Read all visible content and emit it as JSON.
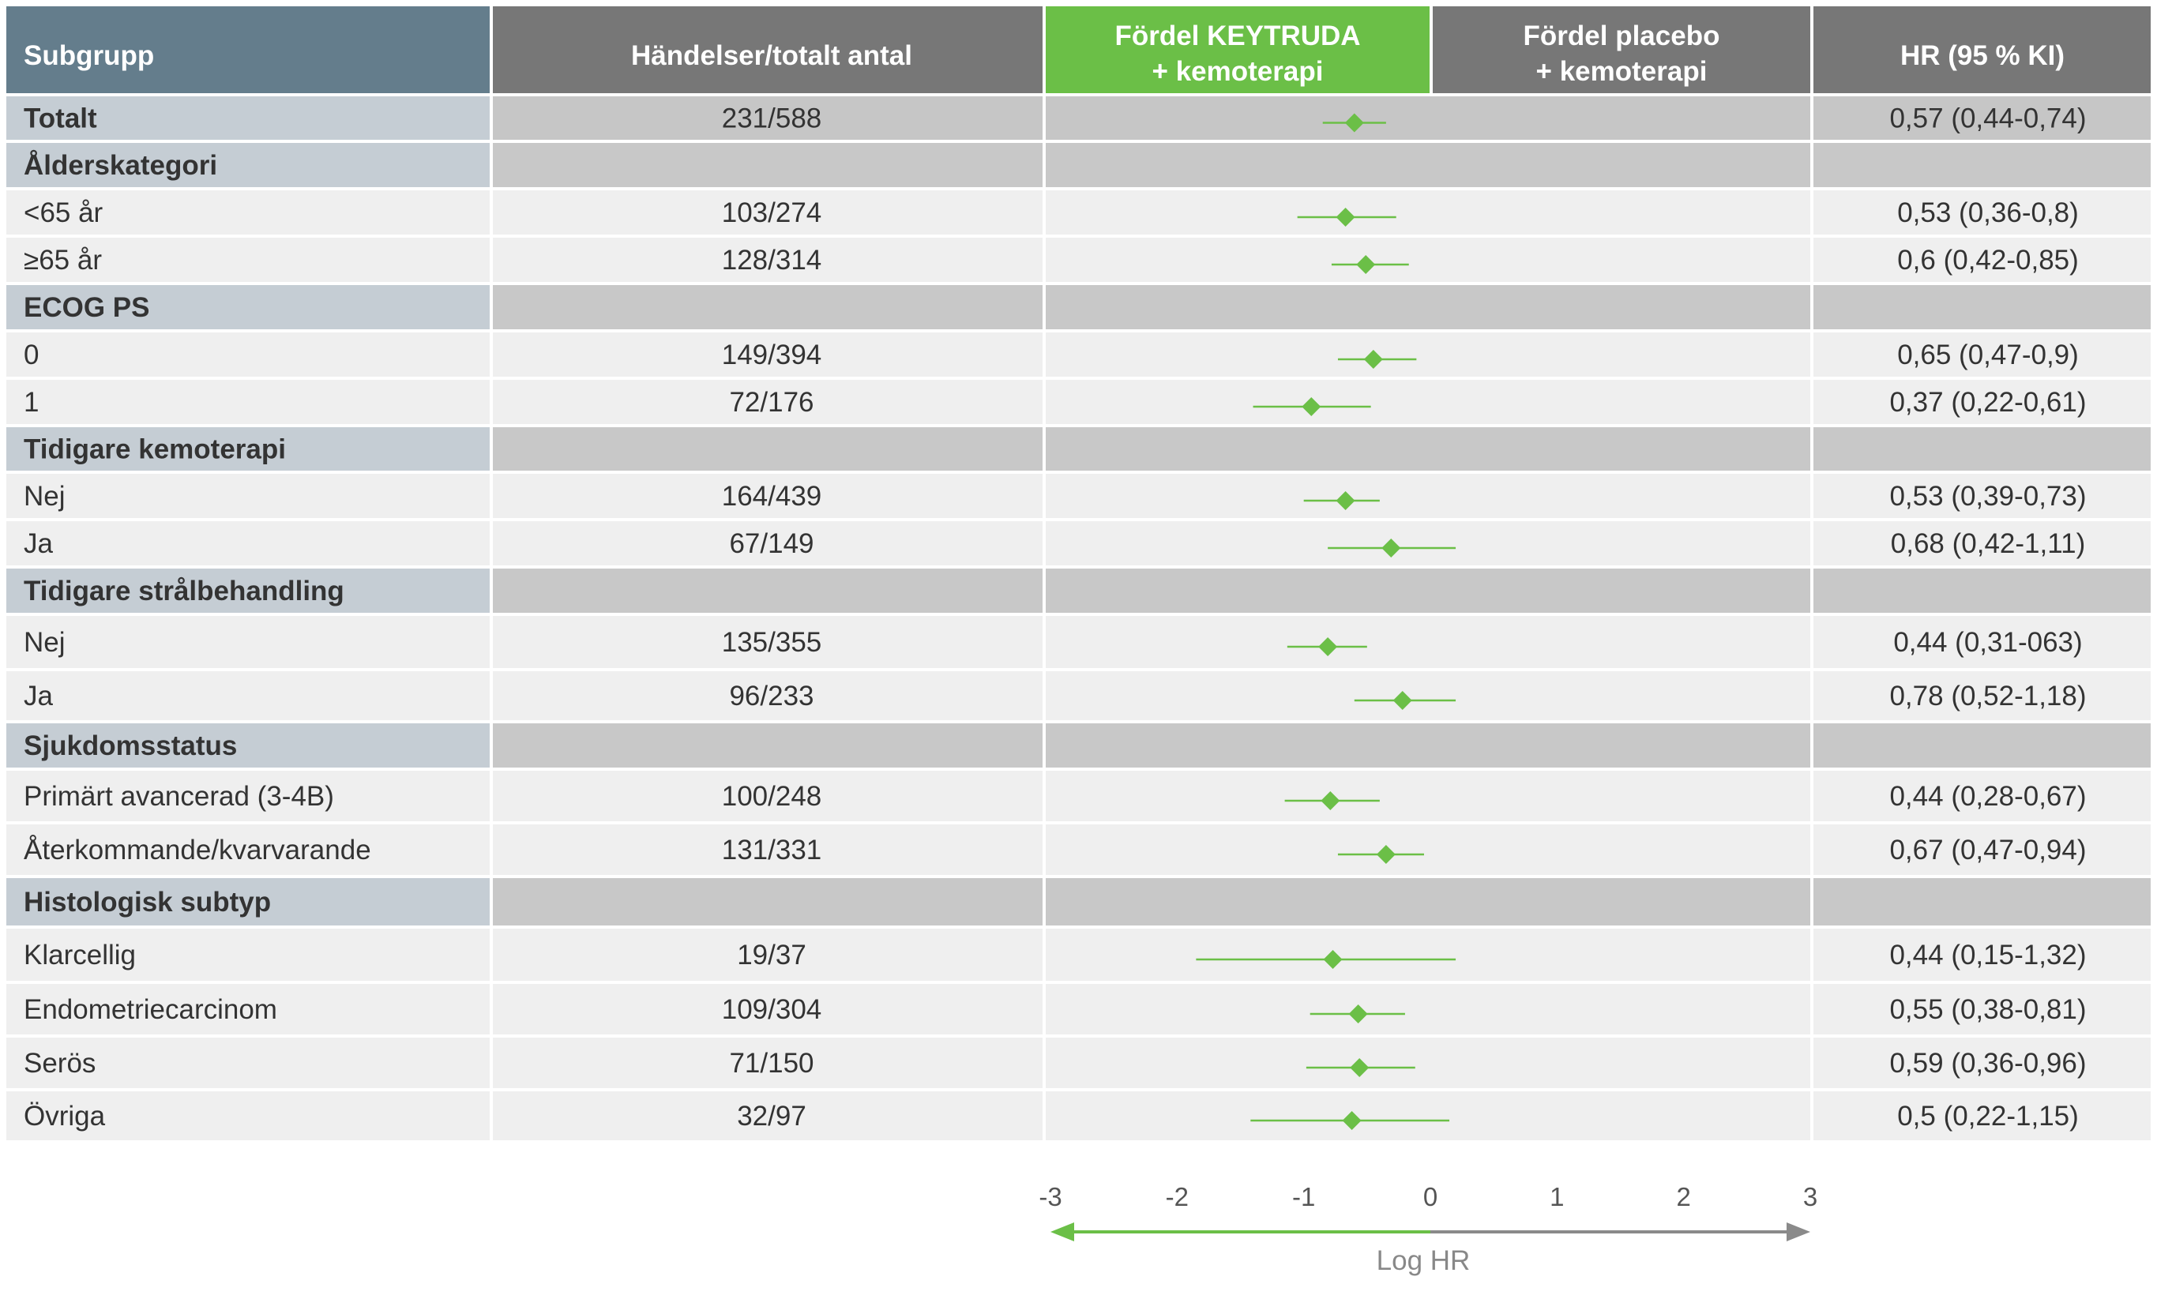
{
  "header": {
    "subgroup": "Subgrupp",
    "events": "Händelser/totalt antal",
    "favor_left": [
      "Fördel KEYTRUDA",
      "+ kemoterapi"
    ],
    "favor_right": [
      "Fördel placebo",
      "+ kemoterapi"
    ],
    "hr": "HR (95 % KI)"
  },
  "rows": [
    {
      "kind": "total",
      "label": "Totalt",
      "events": "231/588",
      "hr": "0,57 (0,44-0,74)"
    },
    {
      "kind": "category",
      "label": "Ålderskategori"
    },
    {
      "kind": "item",
      "label": " <65 år",
      "events": "103/274",
      "hr": "0,53 (0,36-0,8)"
    },
    {
      "kind": "item",
      "label": " ≥65 år",
      "events": "128/314",
      "hr": "0,6 (0,42-0,85)"
    },
    {
      "kind": "category",
      "label": "ECOG PS"
    },
    {
      "kind": "item",
      "label": "0",
      "events": "149/394",
      "hr": "0,65 (0,47-0,9)"
    },
    {
      "kind": "item",
      "label": "1",
      "events": "72/176",
      "hr": "0,37 (0,22-0,61)"
    },
    {
      "kind": "category",
      "label": "Tidigare kemoterapi"
    },
    {
      "kind": "item",
      "label": "Nej",
      "events": "164/439",
      "hr": "0,53 (0,39-0,73)"
    },
    {
      "kind": "item",
      "label": "Ja",
      "events": "67/149",
      "hr": "0,68 (0,42-1,11)"
    },
    {
      "kind": "category",
      "label": "Tidigare strålbehandling"
    },
    {
      "kind": "item",
      "label": "Nej",
      "events": "135/355",
      "hr": "0,44 (0,31-063)"
    },
    {
      "kind": "item",
      "label": "Ja",
      "events": "96/233",
      "hr": "0,78 (0,52-1,18)"
    },
    {
      "kind": "category",
      "label": "Sjukdomsstatus"
    },
    {
      "kind": "item",
      "label": "Primärt avancerad (3-4B)",
      "events": "100/248",
      "hr": "0,44 (0,28-0,67)"
    },
    {
      "kind": "item",
      "label": "Återkommande/kvarvarande",
      "events": "131/331",
      "hr": "0,67 (0,47-0,94)"
    },
    {
      "kind": "category",
      "label": "Histologisk subtyp"
    },
    {
      "kind": "item",
      "label": "Klarcellig",
      "events": "19/37",
      "hr": "0,44 (0,15-1,32)"
    },
    {
      "kind": "item",
      "label": "Endometriecarcinom",
      "events": "109/304",
      "hr": "0,55 (0,38-0,81)"
    },
    {
      "kind": "item",
      "label": "Serös",
      "events": "71/150",
      "hr": "0,59 (0,36-0,96)"
    },
    {
      "kind": "item",
      "label": "Övriga",
      "events": "32/97",
      "hr": "0,5 (0,22-1,15)"
    }
  ],
  "axis": {
    "label": "Log HR",
    "ticks": [
      "-3",
      "-2",
      "-1",
      "0",
      "1",
      "2",
      "3"
    ]
  },
  "colors": {
    "header_subgroup": "#647d8c",
    "header_dark": "#777777",
    "header_green": "#6bbf47",
    "category_left": "#c5cdd4",
    "category_fill": "#c8c8c8",
    "total_fill": "#c6c6c6",
    "item_fill": "#efefef",
    "marker": "#6bbf47",
    "axis_right": "#8a8a8a"
  },
  "chart_data": {
    "type": "forest",
    "xlabel": "Log HR",
    "xlim": [
      -3,
      3
    ],
    "xticks": [
      -3,
      -2,
      -1,
      0,
      1,
      2,
      3
    ],
    "series": [
      {
        "label": "Totalt",
        "x": -0.6,
        "ci": [
          -0.85,
          -0.35
        ]
      },
      {
        "label": " <65 år",
        "x": -0.67,
        "ci": [
          -1.05,
          -0.27
        ]
      },
      {
        "label": " ≥65 år",
        "x": -0.51,
        "ci": [
          -0.78,
          -0.17
        ]
      },
      {
        "label": "0",
        "x": -0.45,
        "ci": [
          -0.73,
          -0.11
        ]
      },
      {
        "label": "1",
        "x": -0.94,
        "ci": [
          -1.4,
          -0.47
        ]
      },
      {
        "label": "Nej",
        "x": -0.67,
        "ci": [
          -1.0,
          -0.4
        ]
      },
      {
        "label": "Ja",
        "x": -0.31,
        "ci": [
          -0.81,
          0.2
        ]
      },
      {
        "label": "Nej",
        "x": -0.81,
        "ci": [
          -1.13,
          -0.5
        ]
      },
      {
        "label": "Ja",
        "x": -0.22,
        "ci": [
          -0.6,
          0.2
        ]
      },
      {
        "label": "Primärt avancerad (3-4B)",
        "x": -0.79,
        "ci": [
          -1.15,
          -0.4
        ]
      },
      {
        "label": "Återkommande/kvarvarande",
        "x": -0.35,
        "ci": [
          -0.73,
          -0.05
        ]
      },
      {
        "label": "Klarcellig",
        "x": -0.77,
        "ci": [
          -1.85,
          0.2
        ]
      },
      {
        "label": "Endometriecarcinom",
        "x": -0.57,
        "ci": [
          -0.95,
          -0.2
        ]
      },
      {
        "label": "Serös",
        "x": -0.56,
        "ci": [
          -0.98,
          -0.12
        ]
      },
      {
        "label": "Övriga",
        "x": -0.62,
        "ci": [
          -1.42,
          0.15
        ]
      }
    ]
  }
}
